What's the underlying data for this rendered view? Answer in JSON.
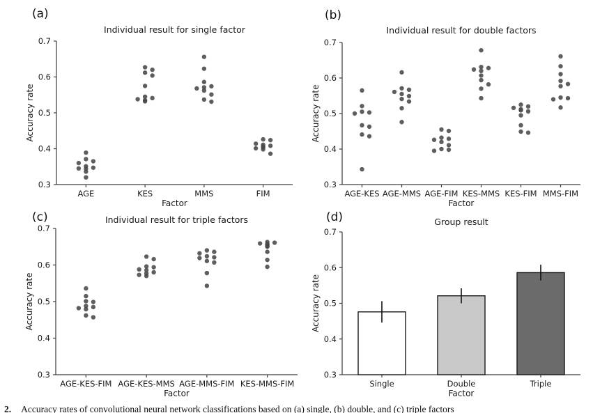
{
  "caption": {
    "number": "2.",
    "text": "Accuracy rates of convolutional neural network classifications based on (a) single, (b) double, and (c) triple factors"
  },
  "colors": {
    "dot": "#484848",
    "axis": "#3d3d3d",
    "error_bar": "#111111",
    "bar_edge": "#1a1a1a"
  },
  "chart_data": [
    {
      "id": "a",
      "panel_label": "(a)",
      "type": "scatter",
      "title": "Individual result for single factor",
      "xlabel": "Factor",
      "ylabel": "Accuracy rate",
      "ylim": [
        0.3,
        0.7
      ],
      "yticks": [
        0.3,
        0.4,
        0.5,
        0.6,
        0.7
      ],
      "grid": false,
      "categories": [
        "AGE",
        "KES",
        "MMS",
        "FIM"
      ],
      "values": [
        [
          0.389,
          0.371,
          0.365,
          0.36,
          0.351,
          0.347,
          0.345,
          0.344,
          0.336,
          0.32
        ],
        [
          0.627,
          0.62,
          0.612,
          0.604,
          0.575,
          0.545,
          0.541,
          0.538,
          0.535,
          0.532
        ],
        [
          0.656,
          0.623,
          0.586,
          0.574,
          0.571,
          0.568,
          0.562,
          0.551,
          0.537,
          0.531
        ],
        [
          0.426,
          0.424,
          0.414,
          0.411,
          0.408,
          0.406,
          0.404,
          0.401,
          0.398,
          0.386
        ]
      ]
    },
    {
      "id": "b",
      "panel_label": "(b)",
      "type": "scatter",
      "title": "Individual result for double factors",
      "xlabel": "Factor",
      "ylabel": "Accuracy rate",
      "ylim": [
        0.3,
        0.7
      ],
      "yticks": [
        0.3,
        0.4,
        0.5,
        0.6,
        0.7
      ],
      "grid": false,
      "categories": [
        "AGE-KES",
        "AGE-MMS",
        "AGE-FIM",
        "KES-MMS",
        "KES-FIM",
        "MMS-FIM"
      ],
      "values": [
        [
          0.565,
          0.521,
          0.505,
          0.503,
          0.5,
          0.467,
          0.463,
          0.441,
          0.436,
          0.343
        ],
        [
          0.616,
          0.571,
          0.567,
          0.561,
          0.555,
          0.549,
          0.541,
          0.534,
          0.515,
          0.476
        ],
        [
          0.455,
          0.451,
          0.432,
          0.429,
          0.426,
          0.42,
          0.411,
          0.4,
          0.398,
          0.395
        ],
        [
          0.678,
          0.631,
          0.628,
          0.624,
          0.62,
          0.607,
          0.594,
          0.582,
          0.57,
          0.543
        ],
        [
          0.525,
          0.52,
          0.516,
          0.512,
          0.509,
          0.506,
          0.495,
          0.467,
          0.449,
          0.446
        ],
        [
          0.661,
          0.633,
          0.611,
          0.592,
          0.583,
          0.577,
          0.545,
          0.543,
          0.54,
          0.517
        ]
      ]
    },
    {
      "id": "c",
      "panel_label": "(c)",
      "type": "scatter",
      "title": "Individual result for triple factors",
      "xlabel": "Factor",
      "ylabel": "Accuracy rate",
      "ylim": [
        0.3,
        0.7
      ],
      "yticks": [
        0.3,
        0.4,
        0.5,
        0.6,
        0.7
      ],
      "grid": false,
      "categories": [
        "AGE-KES-FIM",
        "AGE-KES-MMS",
        "AGE-MMS-FIM",
        "KES-MMS-FIM"
      ],
      "values": [
        [
          0.536,
          0.515,
          0.501,
          0.499,
          0.488,
          0.485,
          0.482,
          0.479,
          0.462,
          0.457
        ],
        [
          0.623,
          0.616,
          0.596,
          0.594,
          0.588,
          0.586,
          0.58,
          0.577,
          0.573,
          0.57
        ],
        [
          0.64,
          0.636,
          0.632,
          0.624,
          0.621,
          0.619,
          0.611,
          0.607,
          0.578,
          0.543
        ],
        [
          0.663,
          0.661,
          0.659,
          0.657,
          0.655,
          0.652,
          0.65,
          0.636,
          0.614,
          0.595
        ]
      ]
    },
    {
      "id": "d",
      "panel_label": "(d)",
      "type": "bar",
      "title": "Group result",
      "xlabel": "Factor",
      "ylabel": "Accuracy rate",
      "ylim": [
        0.3,
        0.7
      ],
      "yticks": [
        0.3,
        0.4,
        0.5,
        0.6,
        0.7
      ],
      "grid": false,
      "categories": [
        "Single",
        "Double",
        "Triple"
      ],
      "values": [
        0.476,
        0.521,
        0.586
      ],
      "errors": [
        0.03,
        0.021,
        0.022
      ],
      "bar_colors": [
        "#ffffff",
        "#c9c9c9",
        "#6b6b6b"
      ]
    }
  ]
}
